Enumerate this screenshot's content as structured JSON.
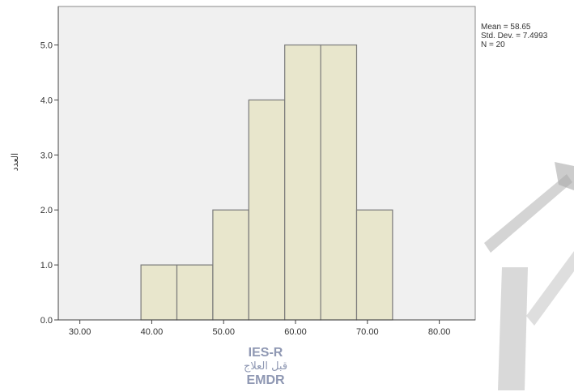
{
  "chart_data": {
    "type": "bar",
    "subtype": "histogram",
    "bins": [
      {
        "from": 38.5,
        "to": 43.5,
        "count": 1
      },
      {
        "from": 43.5,
        "to": 48.5,
        "count": 1
      },
      {
        "from": 48.5,
        "to": 53.5,
        "count": 2
      },
      {
        "from": 53.5,
        "to": 58.5,
        "count": 4
      },
      {
        "from": 58.5,
        "to": 63.5,
        "count": 5
      },
      {
        "from": 63.5,
        "to": 68.5,
        "count": 5
      },
      {
        "from": 68.5,
        "to": 73.5,
        "count": 2
      }
    ],
    "xlim": [
      27,
      85
    ],
    "ylim": [
      0,
      5.7
    ],
    "xticks": [
      "30.00",
      "40.00",
      "50.00",
      "60.00",
      "70.00",
      "80.00"
    ],
    "yticks": [
      "0.0",
      "1.0",
      "2.0",
      "3.0",
      "4.0",
      "5.0"
    ],
    "ylabel": "العدد",
    "xlabel_lines": [
      "IES-R",
      "قبل العلاج",
      "EMDR"
    ],
    "stats": [
      "Mean = 58.65",
      "Std. Dev. = 7.4993",
      "N = 20"
    ],
    "grid": false,
    "colors": {
      "plot_bg": "#f0f0f0",
      "bar_fill": "#e8e6cc",
      "bar_stroke": "#7a7a7a",
      "axis": "#444444",
      "xlabel": "#8f98b3",
      "watermark": "#aaaaaa"
    }
  },
  "watermark": {
    "text": "MALAYA"
  }
}
